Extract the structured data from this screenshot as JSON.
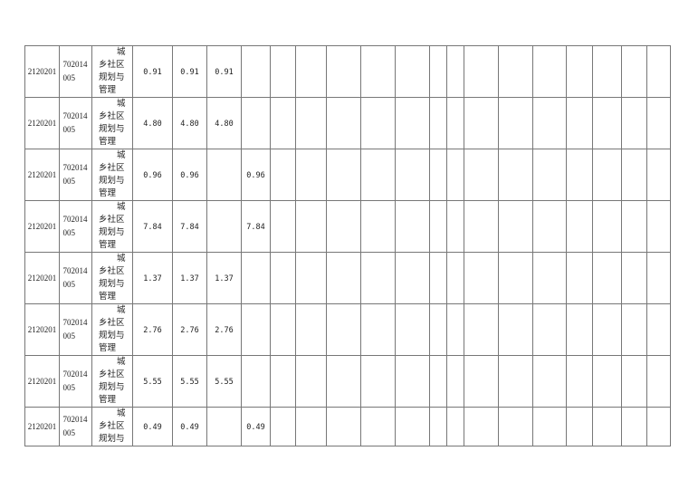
{
  "table": {
    "rows": [
      {
        "code": "2120201",
        "account": "702014005",
        "category": "城乡社区规划与管理",
        "amount_1": "0.91",
        "amount_2": "0.91",
        "amount_3": "0.91"
      },
      {
        "code": "2120201",
        "account": "702014005",
        "category": "城乡社区规划与管理",
        "amount_1": "4.80",
        "amount_2": "4.80",
        "amount_3": "4.80"
      },
      {
        "code": "2120201",
        "account": "702014005",
        "category": "城乡社区规划与管理",
        "amount_1": "0.96",
        "amount_2": "0.96",
        "amount_4": "0.96"
      },
      {
        "code": "2120201",
        "account": "702014005",
        "category": "城乡社区规划与管理",
        "amount_1": "7.84",
        "amount_2": "7.84",
        "amount_4": "7.84"
      },
      {
        "code": "2120201",
        "account": "702014005",
        "category": "城乡社区规划与管理",
        "amount_1": "1.37",
        "amount_2": "1.37",
        "amount_3": "1.37"
      },
      {
        "code": "2120201",
        "account": "702014005",
        "category": "城乡社区规划与管理",
        "amount_1": "2.76",
        "amount_2": "2.76",
        "amount_3": "2.76"
      },
      {
        "code": "2120201",
        "account": "702014005",
        "category": "城乡社区规划与管理",
        "amount_1": "5.55",
        "amount_2": "5.55",
        "amount_3": "5.55"
      },
      {
        "code": "2120201",
        "account": "702014005",
        "category": "城乡社区规划与",
        "amount_1": "0.49",
        "amount_2": "0.49",
        "amount_4": "0.49"
      }
    ]
  }
}
